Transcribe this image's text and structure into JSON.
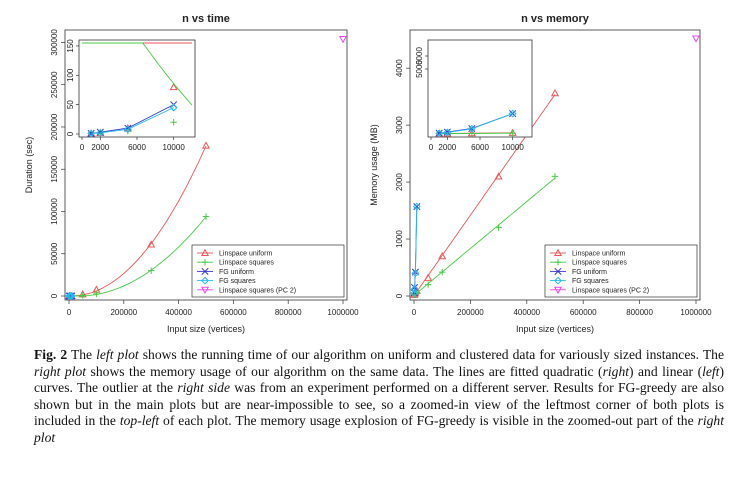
{
  "chart_data": [
    {
      "type": "line",
      "title": "n vs time",
      "xlabel": "Input size (vertices)",
      "ylabel": "Duration (sec)",
      "xlim": [
        0,
        1000000
      ],
      "ylim": [
        0,
        310000
      ],
      "xticks": [
        0,
        200000,
        400000,
        600000,
        800000,
        1000000
      ],
      "yticks": [
        0,
        50000,
        100000,
        150000,
        200000,
        250000,
        300000
      ],
      "xtick_labels": [
        "0",
        "200000",
        "400000",
        "600000",
        "800000",
        "1000000"
      ],
      "ytick_labels": [
        "0",
        "50000",
        "100000",
        "150000",
        "200000",
        "250000",
        "300000"
      ],
      "legend_position": "bottom-right",
      "series": [
        {
          "name": "Linspace uniform",
          "color": "#ee5555",
          "marker": "triangle",
          "x": [
            1000,
            2000,
            5000,
            10000,
            50000,
            100000,
            300000,
            500000
          ],
          "y": [
            1,
            2,
            10,
            80,
            2000,
            7500,
            61000,
            178000
          ]
        },
        {
          "name": "Linspace squares",
          "color": "#44cc44",
          "marker": "plus",
          "x": [
            1000,
            2000,
            5000,
            10000,
            50000,
            100000,
            300000,
            500000
          ],
          "y": [
            1,
            2,
            5,
            20,
            600,
            2500,
            30000,
            94000
          ]
        },
        {
          "name": "FG uniform",
          "color": "#3333cc",
          "marker": "x",
          "x": [
            1000,
            2000,
            5000,
            10000
          ],
          "y": [
            1,
            3,
            10,
            50
          ]
        },
        {
          "name": "FG squares",
          "color": "#22bbee",
          "marker": "diamond",
          "x": [
            1000,
            2000,
            5000,
            10000
          ],
          "y": [
            1,
            2,
            8,
            45
          ]
        },
        {
          "name": "Linspace squares (PC 2)",
          "color": "#ee44ee",
          "marker": "down-triangle",
          "x": [
            1000000
          ],
          "y": [
            304000
          ]
        }
      ],
      "inset": {
        "xlim": [
          0,
          12000
        ],
        "ylim": [
          0,
          155
        ],
        "xticks": [
          0,
          2000,
          6000,
          10000
        ],
        "yticks": [
          0,
          50,
          100,
          150
        ],
        "xtick_labels": [
          "0",
          "2000",
          "6000",
          "10000"
        ],
        "ytick_labels": [
          "0",
          "50",
          "100",
          "150"
        ]
      }
    },
    {
      "type": "line",
      "title": "n vs memory",
      "xlabel": "Input size (vertices)",
      "ylabel": "Memory usage (MB)",
      "xlim": [
        0,
        1000000
      ],
      "ylim": [
        0,
        4600
      ],
      "xticks": [
        0,
        200000,
        400000,
        600000,
        800000,
        1000000
      ],
      "yticks": [
        0,
        1000,
        2000,
        3000,
        4000
      ],
      "xtick_labels": [
        "0",
        "200000",
        "400000",
        "600000",
        "800000",
        "1000000"
      ],
      "ytick_labels": [
        "0",
        "1000",
        "2000",
        "3000",
        "4000"
      ],
      "legend_position": "bottom-right",
      "series": [
        {
          "name": "Linspace uniform",
          "color": "#ee5555",
          "marker": "triangle",
          "x": [
            1000,
            2000,
            5000,
            10000,
            50000,
            100000,
            300000,
            500000
          ],
          "y": [
            20,
            40,
            60,
            90,
            320,
            700,
            2100,
            3560
          ]
        },
        {
          "name": "Linspace squares",
          "color": "#44cc44",
          "marker": "plus",
          "x": [
            1000,
            2000,
            5000,
            10000,
            50000,
            100000,
            300000,
            500000
          ],
          "y": [
            20,
            30,
            40,
            60,
            200,
            420,
            1200,
            2100
          ]
        },
        {
          "name": "FG uniform",
          "color": "#3333cc",
          "marker": "x",
          "x": [
            1000,
            2000,
            5000,
            10000
          ],
          "y": [
            60,
            150,
            420,
            1570
          ]
        },
        {
          "name": "FG squares",
          "color": "#22bbee",
          "marker": "diamond",
          "x": [
            1000,
            2000,
            5000,
            10000
          ],
          "y": [
            50,
            120,
            400,
            1570
          ]
        },
        {
          "name": "Linspace squares (PC 2)",
          "color": "#ee44ee",
          "marker": "down-triangle",
          "x": [
            1000000
          ],
          "y": [
            4520
          ]
        }
      ],
      "inset": {
        "xlim": [
          0,
          12000
        ],
        "ylim": [
          0,
          7000
        ],
        "xticks": [
          0,
          2000,
          6000,
          10000
        ],
        "yticks": [
          5000,
          6000
        ],
        "xtick_labels": [
          "0",
          "2000",
          "6000",
          "10000"
        ],
        "ytick_labels": [
          "5000",
          "6000"
        ]
      }
    }
  ],
  "caption": {
    "label": "Fig. 2",
    "segments": [
      {
        "t": "The ",
        "i": false
      },
      {
        "t": "left plot",
        "i": true
      },
      {
        "t": " shows the running time of our algorithm on uniform and clustered data for variously sized instances. The ",
        "i": false
      },
      {
        "t": "right plot",
        "i": true
      },
      {
        "t": " shows the memory usage of our algorithm on the same data. The lines are fitted quadratic (",
        "i": false
      },
      {
        "t": "right",
        "i": true
      },
      {
        "t": ") and linear (",
        "i": false
      },
      {
        "t": "left",
        "i": true
      },
      {
        "t": ") curves. The outlier at the ",
        "i": false
      },
      {
        "t": "right side",
        "i": true
      },
      {
        "t": " was from an experiment performed on a different server. Results for FG-greedy are also shown but in the main plots but are near-impossible to see, so a zoomed-in view of the leftmost corner of both plots is included in the ",
        "i": false
      },
      {
        "t": "top-left",
        "i": true
      },
      {
        "t": " of each plot. The memory usage explosion of FG-greedy is visible in the zoomed-out part of the ",
        "i": false
      },
      {
        "t": "right plot",
        "i": true
      }
    ]
  }
}
